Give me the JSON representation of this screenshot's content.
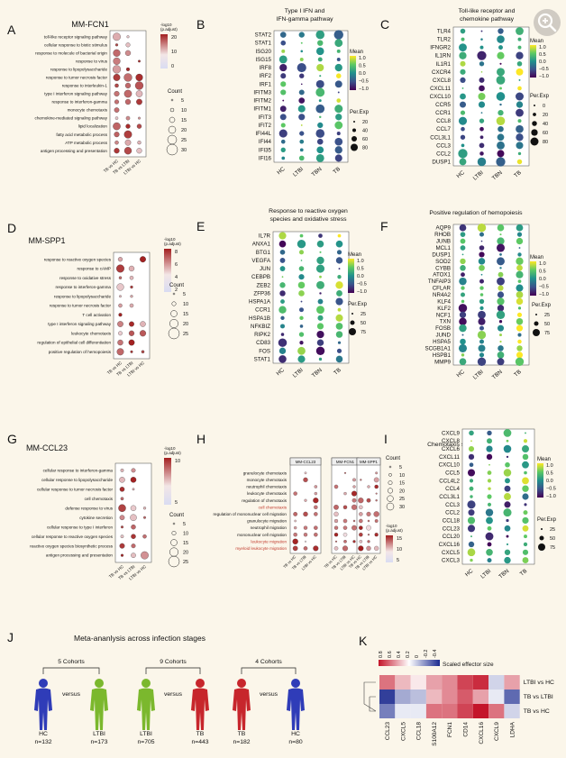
{
  "figure": {
    "panel_letters": [
      "A",
      "B",
      "C",
      "D",
      "E",
      "F",
      "G",
      "H",
      "I",
      "J",
      "K"
    ],
    "A": {
      "title": "MM-FCN1",
      "rows": [
        "toll-like receptor signaling pathway",
        "cellular response to biotic stimulus",
        "response to molecule of bacterial origin",
        "response to virus",
        "response to lipopolysaccharide",
        "response to tumor necrosis factor",
        "response to interleukin-1",
        "type I interferon signaling pathway",
        "response to interferon-gamma",
        "monocyte chemotaxis",
        "chemokine-mediated signaling pathway",
        "lipid localization",
        "fatty acid metabolic process",
        "ATP metabolic process",
        "antigen processing and presentation"
      ],
      "cols": [
        "TB vs HC",
        "TB vs LTBI",
        "LTBI vs HC"
      ],
      "cb_title": "-log10\n(p.adjust)",
      "cb_ticks": [
        "20",
        "10",
        "0"
      ],
      "size_title": "Count",
      "size_ticks": [
        "5",
        "10",
        "15",
        "20",
        "25",
        "30"
      ]
    },
    "B": {
      "title": "Type I IFN and\nIFN-gamma pathway",
      "rows": [
        "STAT2",
        "STAT1",
        "ISG20",
        "ISG15",
        "IRF8",
        "IRF2",
        "IRF1",
        "IFITM3",
        "IFITM2",
        "IFITM1",
        "IFIT3",
        "IFIT2",
        "IFI44L",
        "IFI44",
        "IFI35",
        "IFI16"
      ],
      "cols": [
        "HC",
        "LTBI",
        "TBN",
        "TB"
      ],
      "cb_title": "Mean",
      "cb_ticks": [
        "1.0",
        "0.5",
        "0.0",
        "−0.5",
        "−1.0"
      ],
      "size_title": "Per.Exp",
      "size_ticks": [
        "20",
        "40",
        "60",
        "80"
      ]
    },
    "C": {
      "title": "Toll-like receptor and\nchemokine pathway",
      "rows": [
        "TLR4",
        "TLR2",
        "IFNGR2",
        "IL1RN",
        "IL1R1",
        "CXCR4",
        "CXCL8",
        "CXCL11",
        "CXCL10",
        "CCR5",
        "CCR1",
        "CCL8",
        "CCL7",
        "CCL3L1",
        "CCL3",
        "CCL2",
        "DUSP1"
      ],
      "cols": [
        "HC",
        "LTBI",
        "TBN",
        "TB"
      ],
      "cb_title": "Mean",
      "cb_ticks": [
        "1.0",
        "0.5",
        "0.0",
        "−0.5",
        "−1.0"
      ],
      "size_title": "Per.Exp",
      "size_ticks": [
        "0",
        "20",
        "40",
        "60",
        "80"
      ]
    },
    "D": {
      "title": "MM-SPP1",
      "rows": [
        "response to reactive oxygen species",
        "response to cAMP",
        "response to oxidative stress",
        "response to interferon-gamma",
        "response to lipopolysaccharide",
        "response to tumor necrosis factor",
        "T cell activation",
        "type I interferon signaling pathway",
        "leukocyte chemotaxis",
        "regulation of epithelial cell differentiation",
        "positive regulation of hemopoiesis"
      ],
      "cols": [
        "TB vs HC",
        "TB vs LTBI",
        "LTBI vs HC"
      ],
      "cb_title": "-log10\n(p.adjust)",
      "cb_ticks": [
        "8",
        "6",
        "4",
        "2"
      ],
      "size_title": "Count",
      "size_ticks": [
        "5",
        "10",
        "15",
        "20",
        "25"
      ]
    },
    "E": {
      "title": "Response to reactive oxygen\nspecies and oxidative stress",
      "rows": [
        "IL7R",
        "ANXA1",
        "BTG1",
        "VEGFA",
        "JUN",
        "CEBPB",
        "ZEB2",
        "ZFP36",
        "HSPA1A",
        "CCR1",
        "HSPA1B",
        "NFKBIZ",
        "RIPK2",
        "CD83",
        "FOS",
        "STAT1"
      ],
      "cols": [
        "HC",
        "LTBI",
        "TBN",
        "TB"
      ],
      "cb_title": "Mean",
      "cb_ticks": [
        "1.0",
        "0.5",
        "0.0",
        "−0.5",
        "−1.0"
      ],
      "size_title": "Per.Exp",
      "size_ticks": [
        "25",
        "50",
        "75"
      ]
    },
    "F": {
      "title": "Positive regulation of hemopoiesis",
      "rows": [
        "AQP9",
        "RHOB",
        "JUNB",
        "MCL1",
        "DUSP1",
        "SOD2",
        "CYBB",
        "ATOX1",
        "TNFAIP3",
        "CFLAR",
        "NR4A2",
        "KLF4",
        "KLF2",
        "NCF1",
        "TXN",
        "FOSB",
        "JUND",
        "HSPA5",
        "SCGB1A1",
        "HSPB1",
        "MMP9"
      ],
      "cols": [
        "HC",
        "LTBI",
        "TBN",
        "TB"
      ],
      "cb_title": "Mean",
      "cb_ticks": [
        "1.0",
        "0.5",
        "0.0",
        "−0.5",
        "−1.0"
      ],
      "size_title": "Per.Exp",
      "size_ticks": [
        "25",
        "50",
        "75"
      ]
    },
    "G": {
      "title": "MM-CCL23",
      "rows": [
        "cellular response to interferon-gamma",
        "cellular response to lipopolysaccharide",
        "cellular response to tumor necrosis factor",
        "cell chemotaxis",
        "defense response to virus",
        "cytokine secretion",
        "cellular response to type I interferon",
        "cellular response to reactive oxygen species",
        "reactive oxygen species biosynthetic process",
        "antigen processing and presentation"
      ],
      "cols": [
        "TB vs HC",
        "TB vs LTBI",
        "LTBI vs HC"
      ],
      "cb_title": "-log10\n(p.adjust)",
      "cb_ticks": [
        "10",
        "5"
      ],
      "size_title": "Count",
      "size_ticks": [
        "5",
        "10",
        "15",
        "20",
        "25"
      ]
    },
    "H": {
      "groups": [
        "MM-CCL23",
        "MM-FCN1",
        "MM-SPP1"
      ],
      "rows": [
        "granulocyte chemotaxis",
        "monocyte chemotaxis",
        "neutrophil chemotaxis",
        "leukocyte chemotaxis",
        "regulation of chemotaxis",
        "cell chemotaxis",
        "regulation of mononuclear cell migration",
        "granulocyte migration",
        "neutrophil migration",
        "mononuclear cell migration",
        "leukocyte migration",
        "myeloid leukocyte migration"
      ],
      "red_rows": [
        "cell chemotaxis",
        "leukocyte migration",
        "myeloid leukocyte migration"
      ],
      "cols": [
        "TB vs HC",
        "TB vs LTBI",
        "LTBI vs HC"
      ],
      "size_title": "Count",
      "size_ticks": [
        "5",
        "10",
        "15",
        "20",
        "25",
        "30"
      ],
      "cb_title": "-log10\n(p.adjust)",
      "cb_ticks": [
        "15",
        "10",
        "5"
      ]
    },
    "I": {
      "title": "Chemotaxis signaling pathway",
      "rows": [
        "CXCL9",
        "CXCL8",
        "CXCL6",
        "CXCL11",
        "CXCL10",
        "CCL5",
        "CCL4L2",
        "CCL4",
        "CCL3L1",
        "CCL3",
        "CCL2",
        "CCL18",
        "CCL23",
        "CCL20",
        "CXCL16",
        "CXCL5",
        "CXCL3"
      ],
      "cols": [
        "HC",
        "LTBI",
        "TBN",
        "TB"
      ],
      "cb_title": "Mean",
      "cb_ticks": [
        "1.0",
        "0.5",
        "0.0",
        "−0.5",
        "−1.0"
      ],
      "size_title": "Per.Exp",
      "size_ticks": [
        "25",
        "50",
        "75"
      ]
    },
    "J": {
      "title": "Meta-ananlysis across infection stages",
      "groups": [
        {
          "cohorts": "5 Cohorts",
          "left": {
            "label": "HC",
            "n": "n=132"
          },
          "right": {
            "label": "LTBI",
            "n": "n=173"
          }
        },
        {
          "cohorts": "9 Cohorts",
          "left": {
            "label": "LTBI",
            "n": "n=705"
          },
          "right": {
            "label": "TB",
            "n": "n=443"
          }
        },
        {
          "cohorts": "4 Cohorts",
          "left": {
            "label": "TB",
            "n": "n=182"
          },
          "right": {
            "label": "HC",
            "n": "n=80"
          }
        }
      ],
      "versus": "versus"
    },
    "K": {
      "legend_title": "Scaled effector size",
      "legend_ticks": [
        "0.8",
        "0.6",
        "0.4",
        "0.2",
        "0",
        "-0.2",
        "-0.4"
      ],
      "rows": [
        "LTBI vs HC",
        "TB vs LTBI",
        "TB vs HC"
      ],
      "cols": [
        "CCL23",
        "CXCL5",
        "CCL18",
        "S100A12",
        "FCN1",
        "CD14",
        "CXCL16",
        "CXCL9",
        "LDHA"
      ]
    }
  },
  "colors": {
    "bg": "#fbf6ea",
    "red": "#b2182b",
    "blue": "#2b3c9b",
    "highlight_text": "#c0392b"
  }
}
